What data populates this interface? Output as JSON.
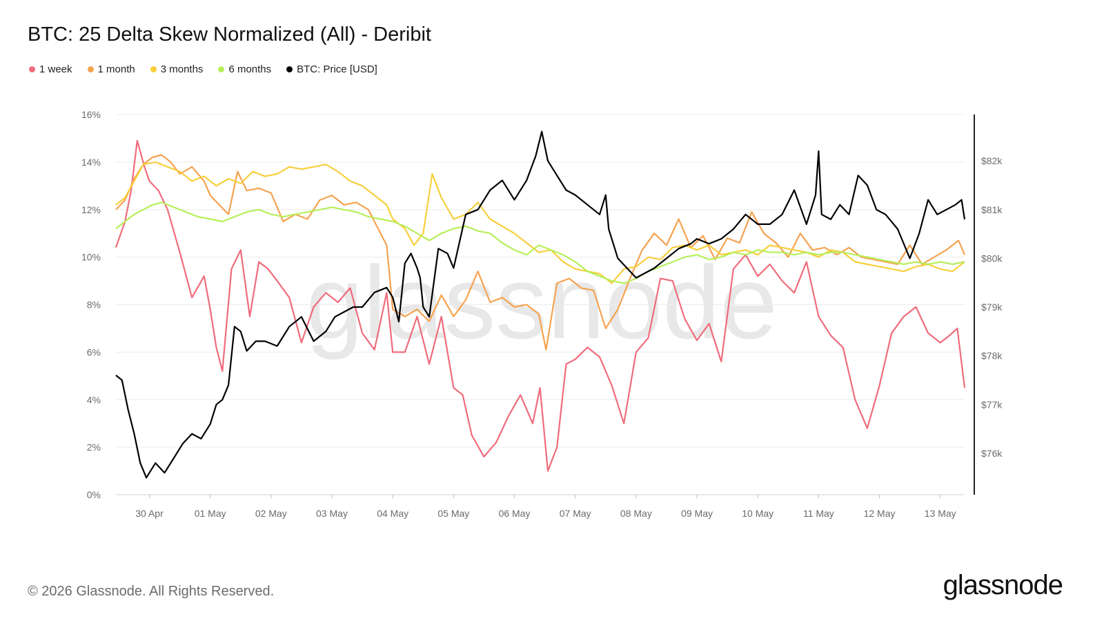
{
  "title": "BTC: 25 Delta Skew Normalized (All) - Deribit",
  "footer": "© 2026 Glassnode. All Rights Reserved.",
  "brand": "glassnode",
  "watermark": "glassnode",
  "legend": [
    {
      "label": "1 week",
      "color": "#f06b7c"
    },
    {
      "label": "1 month",
      "color": "#f5a24f"
    },
    {
      "label": "3 months",
      "color": "#f7cf3c"
    },
    {
      "label": "6 months",
      "color": "#b7ef5a"
    },
    {
      "label": "BTC: Price [USD]",
      "color": "#000000"
    }
  ],
  "chart_data": {
    "type": "line",
    "x_labels": [
      "30 Apr",
      "01 May",
      "02 May",
      "03 May",
      "04 May",
      "05 May",
      "06 May",
      "07 May",
      "08 May",
      "09 May",
      "10 May",
      "11 May",
      "12 May",
      "13 May"
    ],
    "x_range": [
      29.45,
      43.4
    ],
    "y_left": {
      "ticks": [
        "0%",
        "2%",
        "4%",
        "6%",
        "8%",
        "10%",
        "12%",
        "14%",
        "16%"
      ],
      "range": [
        0,
        16
      ]
    },
    "y_right": {
      "ticks": [
        "$76k",
        "$77k",
        "$78k",
        "$79k",
        "$80k",
        "$81k",
        "$82k"
      ],
      "range": [
        75150,
        82950
      ]
    },
    "grid": true,
    "legend_position": "top-left",
    "series": [
      {
        "name": "1 week",
        "color": "#f06b7c",
        "axis": "left",
        "x": [
          29.45,
          29.6,
          29.7,
          29.8,
          29.92,
          30.0,
          30.15,
          30.3,
          30.5,
          30.7,
          30.9,
          31.0,
          31.1,
          31.2,
          31.35,
          31.5,
          31.65,
          31.8,
          31.95,
          32.1,
          32.3,
          32.5,
          32.7,
          32.9,
          33.1,
          33.3,
          33.5,
          33.7,
          33.9,
          34.0,
          34.2,
          34.4,
          34.6,
          34.8,
          35.0,
          35.15,
          35.3,
          35.5,
          35.7,
          35.9,
          36.1,
          36.3,
          36.42,
          36.55,
          36.7,
          36.85,
          37.0,
          37.2,
          37.4,
          37.6,
          37.8,
          38.0,
          38.2,
          38.4,
          38.6,
          38.8,
          39.0,
          39.2,
          39.4,
          39.6,
          39.8,
          40.0,
          40.2,
          40.4,
          40.6,
          40.8,
          41.0,
          41.2,
          41.4,
          41.6,
          41.8,
          42.0,
          42.2,
          42.4,
          42.6,
          42.8,
          43.0,
          43.15,
          43.28,
          43.4
        ],
        "values": [
          10.4,
          11.5,
          12.8,
          14.9,
          13.8,
          13.2,
          12.8,
          12.0,
          10.2,
          8.3,
          9.2,
          7.8,
          6.2,
          5.2,
          9.5,
          10.3,
          7.5,
          9.8,
          9.5,
          9.0,
          8.3,
          6.4,
          7.9,
          8.5,
          8.1,
          8.7,
          6.8,
          6.1,
          8.5,
          6.0,
          6.0,
          7.5,
          5.5,
          7.5,
          4.5,
          4.2,
          2.5,
          1.6,
          2.2,
          3.3,
          4.2,
          3.0,
          4.5,
          1.0,
          2.0,
          5.5,
          5.7,
          6.2,
          5.8,
          4.6,
          3.0,
          6.0,
          6.6,
          9.1,
          9.0,
          7.4,
          6.5,
          7.2,
          5.6,
          9.5,
          10.1,
          9.2,
          9.7,
          9.0,
          8.5,
          9.8,
          7.5,
          6.7,
          6.2,
          4.0,
          2.8,
          4.6,
          6.8,
          7.5,
          7.9,
          6.8,
          6.4,
          6.7,
          7.0,
          4.5
        ]
      },
      {
        "name": "1 month",
        "color": "#f5a24f",
        "axis": "left",
        "x": [
          29.45,
          29.6,
          29.75,
          29.9,
          30.05,
          30.2,
          30.35,
          30.5,
          30.7,
          30.9,
          31.0,
          31.15,
          31.3,
          31.45,
          31.6,
          31.8,
          32.0,
          32.2,
          32.4,
          32.6,
          32.8,
          33.0,
          33.2,
          33.4,
          33.6,
          33.8,
          33.9,
          34.0,
          34.2,
          34.4,
          34.6,
          34.8,
          35.0,
          35.2,
          35.4,
          35.6,
          35.8,
          36.0,
          36.2,
          36.4,
          36.52,
          36.7,
          36.9,
          37.1,
          37.3,
          37.5,
          37.7,
          37.9,
          38.1,
          38.3,
          38.5,
          38.7,
          38.9,
          39.1,
          39.3,
          39.5,
          39.7,
          39.9,
          40.1,
          40.3,
          40.5,
          40.7,
          40.9,
          41.1,
          41.3,
          41.5,
          41.7,
          41.9,
          42.1,
          42.3,
          42.5,
          42.7,
          42.9,
          43.1,
          43.3,
          43.4
        ],
        "values": [
          12.0,
          12.4,
          13.3,
          13.9,
          14.2,
          14.3,
          14.0,
          13.5,
          13.8,
          13.2,
          12.6,
          12.2,
          11.8,
          13.6,
          12.8,
          12.9,
          12.7,
          11.5,
          11.8,
          11.6,
          12.4,
          12.6,
          12.2,
          12.3,
          12.0,
          11.0,
          10.5,
          7.8,
          7.5,
          7.8,
          7.3,
          8.4,
          7.5,
          8.2,
          9.4,
          8.1,
          8.3,
          7.9,
          8.0,
          7.6,
          6.1,
          8.9,
          9.1,
          8.7,
          8.6,
          7.0,
          7.8,
          9.1,
          10.3,
          11.0,
          10.5,
          11.6,
          10.4,
          10.9,
          9.9,
          10.8,
          10.6,
          11.9,
          11.0,
          10.6,
          10.0,
          11.0,
          10.3,
          10.4,
          10.1,
          10.4,
          10.0,
          9.9,
          9.8,
          9.7,
          10.5,
          9.7,
          10.0,
          10.3,
          10.7,
          10.1
        ]
      },
      {
        "name": "3 months",
        "color": "#f7cf3c",
        "axis": "left",
        "x": [
          29.45,
          29.6,
          29.75,
          29.9,
          30.1,
          30.3,
          30.5,
          30.7,
          30.9,
          31.1,
          31.3,
          31.5,
          31.7,
          31.9,
          32.1,
          32.3,
          32.5,
          32.7,
          32.9,
          33.1,
          33.3,
          33.5,
          33.7,
          33.9,
          34.0,
          34.2,
          34.35,
          34.5,
          34.65,
          34.8,
          35.0,
          35.2,
          35.4,
          35.6,
          35.8,
          36.0,
          36.2,
          36.4,
          36.6,
          36.8,
          37.0,
          37.2,
          37.4,
          37.6,
          37.8,
          38.0,
          38.2,
          38.4,
          38.6,
          38.8,
          39.0,
          39.2,
          39.4,
          39.6,
          39.8,
          40.0,
          40.2,
          40.4,
          40.6,
          40.8,
          41.0,
          41.2,
          41.4,
          41.6,
          41.8,
          42.0,
          42.2,
          42.4,
          42.6,
          42.8,
          43.0,
          43.2,
          43.4
        ],
        "values": [
          12.2,
          12.5,
          13.2,
          13.9,
          14.0,
          13.8,
          13.6,
          13.2,
          13.4,
          13.0,
          13.3,
          13.1,
          13.6,
          13.4,
          13.5,
          13.8,
          13.7,
          13.8,
          13.9,
          13.6,
          13.2,
          13.0,
          12.6,
          12.2,
          11.6,
          11.2,
          10.5,
          11.0,
          13.5,
          12.5,
          11.6,
          11.8,
          12.3,
          11.6,
          11.3,
          11.0,
          10.6,
          10.2,
          10.3,
          9.8,
          9.5,
          9.4,
          9.3,
          8.9,
          9.5,
          9.6,
          10.0,
          9.9,
          10.4,
          10.5,
          10.3,
          10.5,
          10.1,
          10.2,
          10.3,
          10.1,
          10.5,
          10.4,
          10.3,
          10.2,
          10.0,
          10.3,
          10.2,
          9.8,
          9.7,
          9.6,
          9.5,
          9.4,
          9.6,
          9.7,
          9.5,
          9.4,
          9.8
        ]
      },
      {
        "name": "6 months",
        "color": "#b7ef5a",
        "axis": "left",
        "x": [
          29.45,
          29.6,
          29.75,
          29.9,
          30.05,
          30.2,
          30.4,
          30.6,
          30.8,
          31.0,
          31.2,
          31.4,
          31.6,
          31.8,
          32.0,
          32.2,
          32.4,
          32.6,
          32.8,
          33.0,
          33.2,
          33.4,
          33.6,
          33.8,
          34.0,
          34.2,
          34.4,
          34.6,
          34.8,
          35.0,
          35.2,
          35.4,
          35.6,
          35.8,
          36.0,
          36.2,
          36.4,
          36.6,
          36.8,
          37.0,
          37.2,
          37.4,
          37.6,
          37.8,
          38.0,
          38.2,
          38.4,
          38.6,
          38.8,
          39.0,
          39.2,
          39.4,
          39.6,
          39.8,
          40.0,
          40.2,
          40.4,
          40.6,
          40.8,
          41.0,
          41.2,
          41.4,
          41.6,
          41.8,
          42.0,
          42.2,
          42.4,
          42.6,
          42.8,
          43.0,
          43.2,
          43.4
        ],
        "values": [
          11.2,
          11.5,
          11.8,
          12.0,
          12.2,
          12.3,
          12.1,
          11.9,
          11.7,
          11.6,
          11.5,
          11.7,
          11.9,
          12.0,
          11.8,
          11.7,
          11.8,
          11.9,
          12.0,
          12.1,
          12.0,
          11.9,
          11.7,
          11.6,
          11.5,
          11.3,
          11.0,
          10.7,
          11.0,
          11.2,
          11.3,
          11.1,
          11.0,
          10.6,
          10.3,
          10.1,
          10.5,
          10.3,
          10.1,
          9.8,
          9.4,
          9.2,
          9.0,
          8.9,
          9.1,
          9.4,
          9.6,
          9.8,
          10.0,
          10.1,
          9.9,
          10.0,
          10.2,
          10.1,
          10.3,
          10.2,
          10.2,
          10.1,
          10.2,
          10.1,
          10.2,
          10.2,
          10.1,
          10.0,
          9.9,
          9.8,
          9.7,
          9.8,
          9.7,
          9.8,
          9.7,
          9.8
        ]
      },
      {
        "name": "BTC: Price [USD]",
        "color": "#000000",
        "axis": "right",
        "x": [
          29.45,
          29.55,
          29.65,
          29.75,
          29.85,
          29.95,
          30.1,
          30.25,
          30.4,
          30.55,
          30.7,
          30.85,
          31.0,
          31.1,
          31.2,
          31.3,
          31.4,
          31.5,
          31.6,
          31.75,
          31.9,
          32.1,
          32.3,
          32.5,
          32.7,
          32.9,
          33.05,
          33.2,
          33.35,
          33.5,
          33.7,
          33.9,
          34.0,
          34.1,
          34.2,
          34.3,
          34.4,
          34.45,
          34.5,
          34.6,
          34.75,
          34.9,
          35.0,
          35.2,
          35.4,
          35.6,
          35.8,
          36.0,
          36.2,
          36.35,
          36.45,
          36.55,
          36.7,
          36.85,
          37.0,
          37.2,
          37.4,
          37.5,
          37.55,
          37.7,
          37.85,
          38.0,
          38.15,
          38.3,
          38.5,
          38.7,
          38.9,
          39.0,
          39.2,
          39.4,
          39.6,
          39.8,
          40.0,
          40.2,
          40.4,
          40.6,
          40.8,
          40.95,
          41.0,
          41.05,
          41.2,
          41.35,
          41.5,
          41.65,
          41.8,
          41.95,
          42.1,
          42.3,
          42.5,
          42.65,
          42.8,
          42.95,
          43.1,
          43.25,
          43.35,
          43.4
        ],
        "values": [
          77.6,
          77.5,
          76.9,
          76.4,
          75.8,
          75.5,
          75.8,
          75.6,
          75.9,
          76.2,
          76.4,
          76.3,
          76.6,
          77.0,
          77.1,
          77.4,
          78.6,
          78.5,
          78.1,
          78.3,
          78.3,
          78.2,
          78.6,
          78.8,
          78.3,
          78.5,
          78.8,
          78.9,
          79.0,
          79.0,
          79.3,
          79.4,
          79.2,
          78.7,
          79.9,
          80.1,
          79.8,
          79.6,
          79.0,
          78.8,
          80.2,
          80.1,
          79.8,
          80.9,
          81.0,
          81.4,
          81.6,
          81.2,
          81.6,
          82.1,
          82.6,
          82.0,
          81.7,
          81.4,
          81.3,
          81.1,
          80.9,
          81.3,
          80.6,
          80.0,
          79.8,
          79.6,
          79.7,
          79.8,
          80.0,
          80.2,
          80.3,
          80.4,
          80.3,
          80.4,
          80.6,
          80.9,
          80.7,
          80.7,
          80.9,
          81.4,
          80.7,
          81.3,
          82.2,
          80.9,
          80.8,
          81.1,
          80.9,
          81.7,
          81.5,
          81.0,
          80.9,
          80.6,
          80.0,
          80.5,
          81.2,
          80.9,
          81.0,
          81.1,
          81.2,
          80.8
        ]
      }
    ]
  }
}
